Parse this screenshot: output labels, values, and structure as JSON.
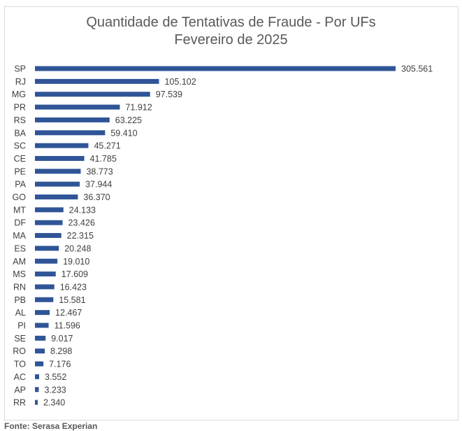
{
  "chart_data": {
    "type": "bar",
    "orientation": "horizontal",
    "title": "Quantidade de Tentativas de Fraude - Por UFs",
    "subtitle": "Fevereiro de 2025",
    "categories": [
      "SP",
      "RJ",
      "MG",
      "PR",
      "RS",
      "BA",
      "SC",
      "CE",
      "PE",
      "PA",
      "GO",
      "MT",
      "DF",
      "MA",
      "ES",
      "AM",
      "MS",
      "RN",
      "PB",
      "AL",
      "PI",
      "SE",
      "RO",
      "TO",
      "AC",
      "AP",
      "RR"
    ],
    "values": [
      305561,
      105102,
      97539,
      71912,
      63225,
      59410,
      45271,
      41785,
      38773,
      37944,
      36370,
      24133,
      23426,
      22315,
      20248,
      19010,
      17609,
      16423,
      15581,
      12467,
      11596,
      9017,
      8298,
      7176,
      3552,
      3233,
      2340
    ],
    "value_labels": [
      "305.561",
      "105.102",
      "97.539",
      "71.912",
      "63.225",
      "59.410",
      "45.271",
      "41.785",
      "38.773",
      "37.944",
      "36.370",
      "24.133",
      "23.426",
      "22.315",
      "20.248",
      "19.010",
      "17.609",
      "16.423",
      "15.581",
      "12.467",
      "11.596",
      "9.017",
      "8.298",
      "7.176",
      "3.552",
      "3.233",
      "2.340"
    ],
    "bar_color": "#2f5597",
    "grid": false,
    "legend": "none"
  },
  "source": "Fonte: Serasa Experian"
}
